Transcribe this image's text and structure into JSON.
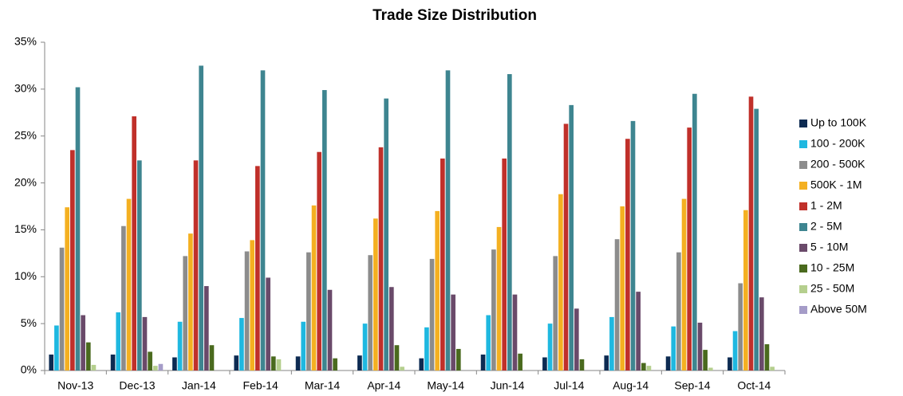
{
  "chart_data": {
    "type": "bar",
    "title": "Trade Size Distribution",
    "categories": [
      "Nov-13",
      "Dec-13",
      "Jan-14",
      "Feb-14",
      "Mar-14",
      "Apr-14",
      "May-14",
      "Jun-14",
      "Jul-14",
      "Aug-14",
      "Sep-14",
      "Oct-14"
    ],
    "series": [
      {
        "name": "Up to 100K",
        "color": "#0d2b52",
        "values": [
          1.7,
          1.7,
          1.4,
          1.6,
          1.5,
          1.6,
          1.3,
          1.7,
          1.4,
          1.6,
          1.5,
          1.4
        ]
      },
      {
        "name": "100 - 200K",
        "color": "#1fb8e0",
        "values": [
          4.8,
          6.2,
          5.2,
          5.6,
          5.2,
          5.0,
          4.6,
          5.9,
          5.0,
          5.7,
          4.7,
          4.2
        ]
      },
      {
        "name": "200 - 500K",
        "color": "#8c8c8c",
        "values": [
          13.1,
          15.4,
          12.2,
          12.7,
          12.6,
          12.3,
          11.9,
          12.9,
          12.2,
          14.0,
          12.6,
          9.3
        ]
      },
      {
        "name": "500K - 1M",
        "color": "#f4b021",
        "values": [
          17.4,
          18.3,
          14.6,
          13.9,
          17.6,
          16.2,
          17.0,
          15.3,
          18.8,
          17.5,
          18.3,
          17.1
        ]
      },
      {
        "name": "1 - 2M",
        "color": "#c0302a",
        "values": [
          23.5,
          27.1,
          22.4,
          21.8,
          23.3,
          23.8,
          22.6,
          22.6,
          26.3,
          24.7,
          25.9,
          29.2
        ]
      },
      {
        "name": "2 - 5M",
        "color": "#3e8590",
        "values": [
          30.2,
          22.4,
          32.5,
          32.0,
          29.9,
          29.0,
          32.0,
          31.6,
          28.3,
          26.6,
          29.5,
          27.9
        ]
      },
      {
        "name": "5 - 10M",
        "color": "#6a4a6a",
        "values": [
          5.9,
          5.7,
          9.0,
          9.9,
          8.6,
          8.9,
          8.1,
          8.1,
          6.6,
          8.4,
          5.1,
          7.8
        ]
      },
      {
        "name": "10 - 25M",
        "color": "#4a6a1e",
        "values": [
          3.0,
          2.0,
          2.7,
          1.5,
          1.3,
          2.7,
          2.3,
          1.8,
          1.2,
          0.8,
          2.2,
          2.8
        ]
      },
      {
        "name": "25 - 50M",
        "color": "#b5cf8e",
        "values": [
          0.6,
          0.5,
          0,
          1.2,
          0,
          0.4,
          0,
          0,
          0,
          0.5,
          0.3,
          0.4
        ]
      },
      {
        "name": "Above 50M",
        "color": "#a59cc8",
        "values": [
          0,
          0.7,
          0,
          0,
          0,
          0,
          0,
          0,
          0,
          0,
          0,
          0
        ]
      }
    ],
    "ylim": [
      0,
      35
    ],
    "yticks": [
      {
        "value": 0,
        "label": "0%"
      },
      {
        "value": 5,
        "label": "5%"
      },
      {
        "value": 10,
        "label": "10%"
      },
      {
        "value": 15,
        "label": "15%"
      },
      {
        "value": 20,
        "label": "20%"
      },
      {
        "value": 25,
        "label": "25%"
      },
      {
        "value": 30,
        "label": "30%"
      },
      {
        "value": 35,
        "label": "35%"
      }
    ],
    "grid": false,
    "legend": "right"
  }
}
